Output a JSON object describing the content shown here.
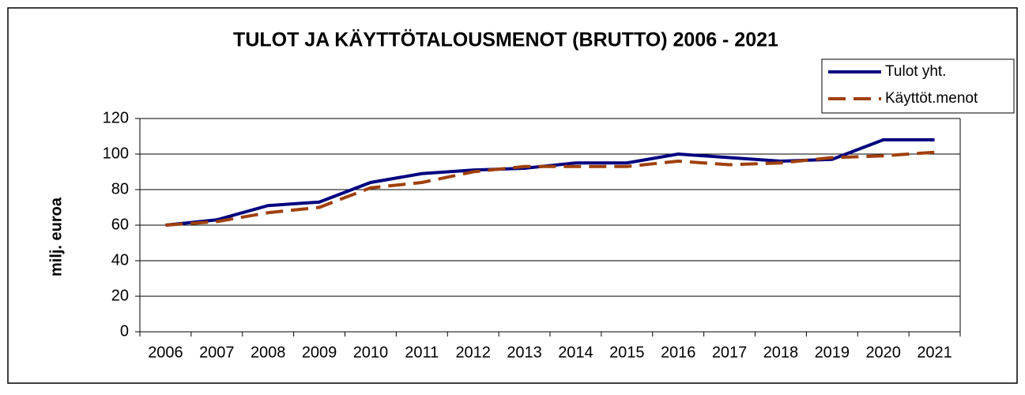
{
  "chart_data": {
    "type": "line",
    "title": "TULOT JA  KÄYTTÖTALOUSMENOT (BRUTTO) 2006 - 2021",
    "y_label": "milj. euroa",
    "categories": [
      "2006",
      "2007",
      "2008",
      "2009",
      "2010",
      "2011",
      "2012",
      "2013",
      "2014",
      "2015",
      "2016",
      "2017",
      "2018",
      "2019",
      "2020",
      "2021"
    ],
    "series": [
      {
        "name": "Tulot yht.",
        "color": "#000080",
        "dash": false,
        "values": [
          60,
          63,
          71,
          73,
          84,
          89,
          91,
          92,
          95,
          95,
          100,
          98,
          96,
          97,
          108,
          108
        ]
      },
      {
        "name": "Käyttöt.menot",
        "color": "#a0400b",
        "dash": true,
        "values": [
          60,
          62,
          67,
          70,
          81,
          84,
          90,
          93,
          93,
          93,
          96,
          94,
          95,
          98,
          99,
          101
        ]
      }
    ],
    "ylim": [
      0,
      120
    ],
    "yticks": [
      0,
      20,
      40,
      60,
      80,
      100,
      120
    ],
    "grid": true,
    "legend": "top-right"
  }
}
